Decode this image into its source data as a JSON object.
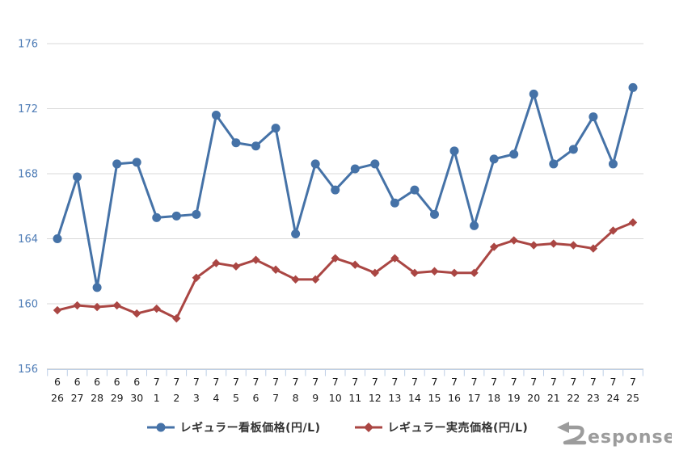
{
  "chart_data": {
    "type": "line",
    "categories": [
      "6/26",
      "6/27",
      "6/28",
      "6/29",
      "6/30",
      "7/1",
      "7/2",
      "7/3",
      "7/4",
      "7/5",
      "7/6",
      "7/7",
      "7/8",
      "7/9",
      "7/10",
      "7/11",
      "7/12",
      "7/13",
      "7/14",
      "7/15",
      "7/16",
      "7/17",
      "7/18",
      "7/19",
      "7/20",
      "7/21",
      "7/22",
      "7/23",
      "7/24",
      "7/25"
    ],
    "series": [
      {
        "name": "レギュラー看板価格(円/L)",
        "color": "#4572a7",
        "marker": "circle",
        "values": [
          164.0,
          167.8,
          161.0,
          168.6,
          168.7,
          165.3,
          165.4,
          165.5,
          171.6,
          169.9,
          169.7,
          170.8,
          164.3,
          168.6,
          167.0,
          168.3,
          168.6,
          166.2,
          167.0,
          165.5,
          169.4,
          164.8,
          168.9,
          169.2,
          172.9,
          168.6,
          169.5,
          171.5,
          168.6,
          173.3
        ]
      },
      {
        "name": "レギュラー実売価格(円/L)",
        "color": "#aa4643",
        "marker": "diamond",
        "values": [
          159.6,
          159.9,
          159.8,
          159.9,
          159.4,
          159.7,
          159.1,
          161.6,
          162.5,
          162.3,
          162.7,
          162.1,
          161.5,
          161.5,
          162.8,
          162.4,
          161.9,
          162.8,
          161.9,
          162.0,
          161.9,
          161.9,
          163.5,
          163.9,
          163.6,
          163.7,
          163.6,
          163.4,
          164.5,
          165.0
        ]
      }
    ],
    "title": "",
    "xlabel": "",
    "ylabel": "",
    "ylim": [
      156,
      176
    ],
    "yticks": [
      156,
      160,
      164,
      168,
      172,
      176
    ],
    "grid": true,
    "legend_position": "bottom"
  },
  "style_colors": {
    "gridline": "#d9d9d9",
    "axis_line": "#bccee6",
    "y_tick_label": "#4e7cb6",
    "x_tick_label": "#1a1a1a",
    "legend_text": "#333333",
    "watermark": "#9c9c9c"
  },
  "watermark": {
    "text": "esponse."
  }
}
